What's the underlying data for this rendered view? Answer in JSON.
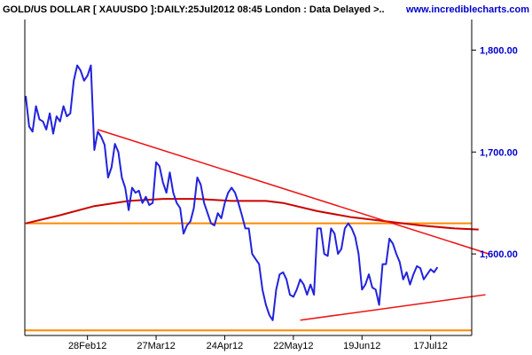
{
  "header": {
    "title": "GOLD/US DOLLAR [ XAUUSDO ]:DAILY:25Jul2012 08:45 London : Data Delayed >..",
    "site": "www.incrediblecharts.com"
  },
  "colors": {
    "price": "#2222dd",
    "trendline": "#ee1111",
    "moving_average": "#cc0000",
    "support_resistance": "#ff8800",
    "axis_labels": "#0000cc",
    "frame": "#000000"
  },
  "chart_data": {
    "type": "line",
    "title": "GOLD/US DOLLAR [ XAUUSDO ]:DAILY:25Jul2012 08:45 London : Data Delayed >..",
    "xlabel": "",
    "ylabel": "",
    "ylim": [
      1520,
      1830
    ],
    "grid": false,
    "x_tick_labels": [
      "28Feb12",
      "27Mar12",
      "24Apr12",
      "22May12",
      "19Jun12",
      "17Jul12"
    ],
    "x_tick_index": [
      18,
      38,
      58,
      78,
      98,
      118
    ],
    "y_ticks": [
      {
        "value": 1800,
        "label": "1,800.00"
      },
      {
        "value": 1700,
        "label": "1,700.00"
      },
      {
        "value": 1600,
        "label": "1,600.00"
      }
    ],
    "series": [
      {
        "role": "price",
        "values": [
          1755,
          1725,
          1720,
          1745,
          1732,
          1730,
          1722,
          1738,
          1718,
          1735,
          1730,
          1745,
          1735,
          1738,
          1770,
          1785,
          1780,
          1770,
          1775,
          1785,
          1702,
          1720,
          1715,
          1707,
          1675,
          1685,
          1708,
          1700,
          1675,
          1665,
          1643,
          1665,
          1660,
          1662,
          1650,
          1656,
          1648,
          1650,
          1690,
          1686,
          1670,
          1660,
          1680,
          1660,
          1650,
          1645,
          1620,
          1628,
          1632,
          1645,
          1675,
          1668,
          1650,
          1640,
          1630,
          1628,
          1640,
          1635,
          1650,
          1660,
          1665,
          1660,
          1650,
          1638,
          1625,
          1625,
          1600,
          1595,
          1590,
          1565,
          1550,
          1540,
          1535,
          1565,
          1580,
          1582,
          1575,
          1560,
          1558,
          1565,
          1575,
          1570,
          1560,
          1570,
          1560,
          1625,
          1625,
          1600,
          1598,
          1625,
          1620,
          1600,
          1605,
          1625,
          1630,
          1625,
          1617,
          1600,
          1565,
          1570,
          1580,
          1567,
          1565,
          1550,
          1590,
          1590,
          1615,
          1610,
          1600,
          1592,
          1575,
          1582,
          1570,
          1580,
          1588,
          1586,
          1575,
          1580,
          1585,
          1582,
          1587
        ]
      },
      {
        "role": "moving_average",
        "points": [
          [
            0,
            1630
          ],
          [
            10,
            1638
          ],
          [
            20,
            1647
          ],
          [
            30,
            1652
          ],
          [
            40,
            1654
          ],
          [
            50,
            1654
          ],
          [
            60,
            1652
          ],
          [
            70,
            1652
          ],
          [
            75,
            1650
          ],
          [
            85,
            1642
          ],
          [
            95,
            1636
          ],
          [
            105,
            1632
          ],
          [
            115,
            1628
          ],
          [
            125,
            1625
          ],
          [
            132,
            1624
          ]
        ]
      }
    ],
    "trendlines": [
      {
        "role": "resistance-trend",
        "from": [
          21,
          1722
        ],
        "to": [
          135,
          1600
        ]
      },
      {
        "role": "support-trend",
        "from": [
          80,
          1535
        ],
        "to": [
          134,
          1560
        ]
      }
    ],
    "horizontal_lines": [
      1630,
      1525
    ]
  }
}
